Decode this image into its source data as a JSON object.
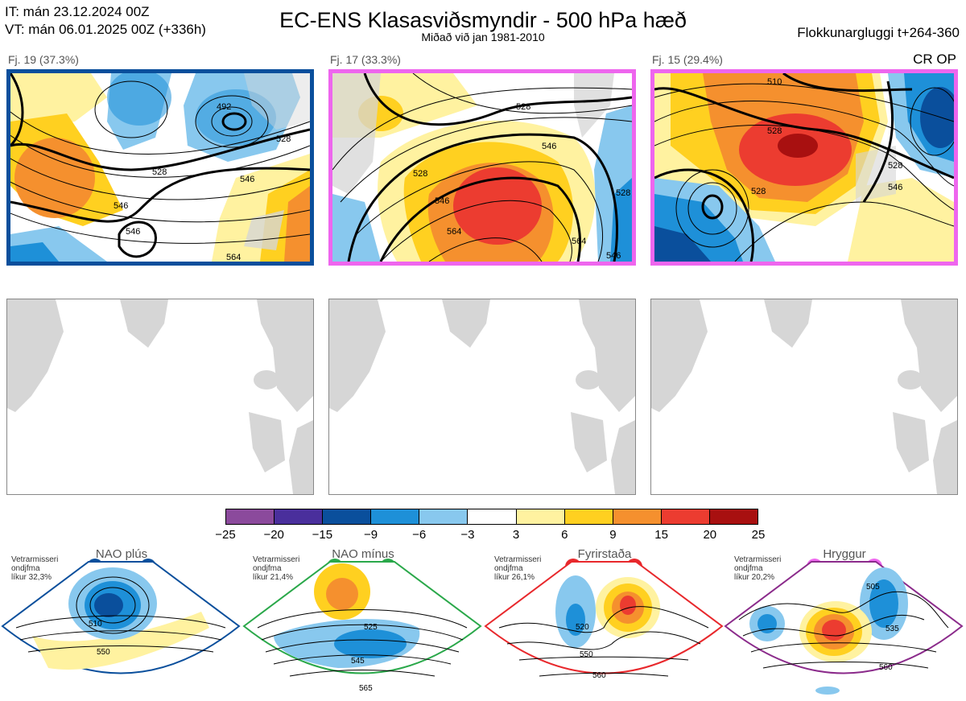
{
  "header": {
    "it_line": "IT: mán 23.12.2024 00Z",
    "vt_line": "VT: mán 06.01.2025 00Z  (+336h)",
    "title": "EC-ENS Klasasviðsmyndir - 500 hPa hæð",
    "subtitle": "Miðað við jan 1981-2010",
    "window": "Flokkunargluggi t+264-360",
    "crop": "CR OP"
  },
  "clusters": [
    {
      "label": "Fj. 19 (37.3%)",
      "border": "#0a4f9c",
      "contours": [
        "492",
        "528",
        "546",
        "546",
        "528",
        "546",
        "564"
      ]
    },
    {
      "label": "Fj. 17 (33.3%)",
      "border": "#ee66ee",
      "contours": [
        "528",
        "546",
        "528",
        "546",
        "564",
        "546",
        "564",
        "528"
      ]
    },
    {
      "label": "Fj. 15 (29.4%)",
      "border": "#ee66ee",
      "contours": [
        "510",
        "528",
        "528",
        "546",
        "528"
      ]
    }
  ],
  "colorbar": {
    "colors": [
      "#8b4a9c",
      "#4a2f9c",
      "#0a4f9c",
      "#1e90d8",
      "#88c8ee",
      "#ffffff",
      "#fff2a0",
      "#ffd020",
      "#f5902e",
      "#ec3c30",
      "#a81010"
    ],
    "ticks": [
      "−25",
      "−20",
      "−15",
      "−9",
      "−6",
      "−3",
      "3",
      "6",
      "9",
      "15",
      "20",
      "25"
    ]
  },
  "regimes": [
    {
      "title": "NAO plús",
      "info": [
        "Vetrarmisseri",
        "ondjfma",
        "líkur 32,3%"
      ],
      "color": "#0a4f9c",
      "contours": [
        "510",
        "550"
      ]
    },
    {
      "title": "NAO mínus",
      "info": [
        "Vetrarmisseri",
        "ondjfma",
        "líkur 21,4%"
      ],
      "color": "#2aa84a",
      "contours": [
        "525",
        "545",
        "565"
      ]
    },
    {
      "title": "Fyrirstaða",
      "info": [
        "Vetrarmisseri",
        "ondjfma",
        "líkur 26,1%"
      ],
      "color": "#e8282c",
      "contours": [
        "520",
        "550",
        "560"
      ]
    },
    {
      "title": "Hryggur",
      "info": [
        "Vetrarmisseri",
        "ondjfma",
        "líkur 20,2%"
      ],
      "color": "#ee66ee",
      "contours": [
        "505",
        "535",
        "560"
      ]
    }
  ]
}
